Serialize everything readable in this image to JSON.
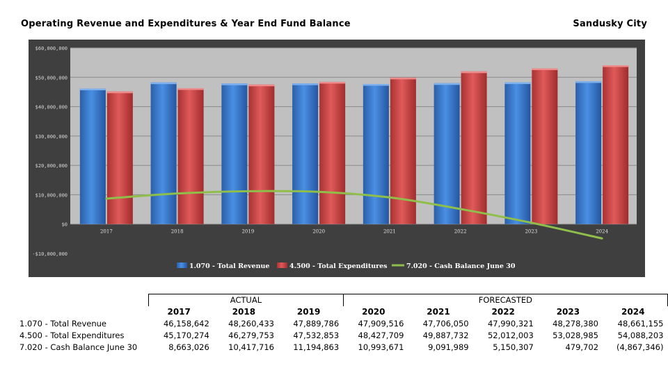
{
  "header": {
    "title": "Operating Revenue and Expenditures & Year End Fund Balance",
    "city": "Sandusky City"
  },
  "chart_data": {
    "type": "bar",
    "categories": [
      "2017",
      "2018",
      "2019",
      "2020",
      "2021",
      "2022",
      "2023",
      "2024"
    ],
    "series": [
      {
        "name": "1.070 - Total Revenue",
        "kind": "bar",
        "color": "#3b7fd4",
        "values": [
          46158642,
          48260433,
          47889786,
          47909516,
          47706050,
          47990321,
          48278380,
          48661155
        ]
      },
      {
        "name": "4.500 - Total Expenditures",
        "kind": "bar",
        "color": "#d44a4a",
        "values": [
          45170274,
          46279753,
          47532853,
          48427709,
          49887732,
          52012003,
          53028985,
          54088203
        ]
      },
      {
        "name": "7.020 - Cash Balance June 30",
        "kind": "line",
        "color": "#8fbf4a",
        "values": [
          8663026,
          10417716,
          11194863,
          10993671,
          9091989,
          5150307,
          479702,
          -4867346
        ]
      }
    ],
    "yticks": [
      -10000000,
      0,
      10000000,
      20000000,
      30000000,
      40000000,
      50000000,
      60000000
    ],
    "ytick_labels": [
      "-$10,000,000",
      "$0",
      "$10,000,000",
      "$20,000,000",
      "$30,000,000",
      "$40,000,000",
      "$50,000,000",
      "$60,000,000"
    ],
    "ylim": [
      -10000000,
      60000000
    ],
    "legend_position": "bottom",
    "plot_background": "#c0c0c0",
    "grid": true
  },
  "table": {
    "group_actual": "ACTUAL",
    "group_forecasted": "FORECASTED",
    "years": [
      "2017",
      "2018",
      "2019",
      "2020",
      "2021",
      "2022",
      "2023",
      "2024"
    ],
    "rows": [
      {
        "label": "1.070 - Total Revenue",
        "values": [
          "46,158,642",
          "48,260,433",
          "47,889,786",
          "47,909,516",
          "47,706,050",
          "47,990,321",
          "48,278,380",
          "48,661,155"
        ]
      },
      {
        "label": "4.500 - Total Expenditures",
        "values": [
          "45,170,274",
          "46,279,753",
          "47,532,853",
          "48,427,709",
          "49,887,732",
          "52,012,003",
          "53,028,985",
          "54,088,203"
        ]
      },
      {
        "label": "7.020 - Cash Balance June 30",
        "values": [
          "8,663,026",
          "10,417,716",
          "11,194,863",
          "10,993,671",
          "9,091,989",
          "5,150,307",
          "479,702",
          "(4,867,346)"
        ]
      }
    ]
  }
}
